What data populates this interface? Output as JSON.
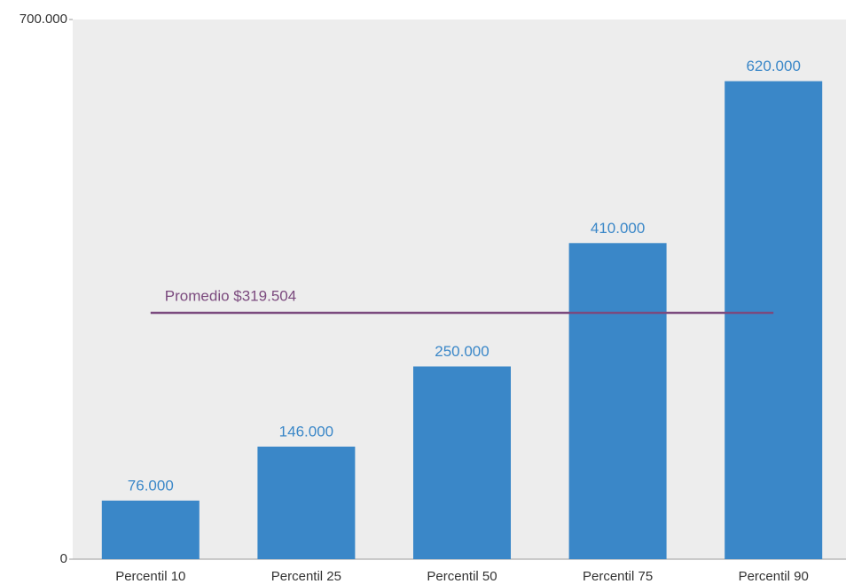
{
  "chart_data": {
    "type": "bar",
    "categories": [
      "Percentil 10",
      "Percentil 25",
      "Percentil 50",
      "Percentil 75",
      "Percentil 90"
    ],
    "values": [
      76000,
      146000,
      250000,
      410000,
      620000
    ],
    "value_labels": [
      "76.000",
      "146.000",
      "250.000",
      "410.000",
      "620.000"
    ],
    "color": "#3a87c8",
    "ylim": [
      0,
      700000
    ],
    "yticks": [
      0,
      {
        "value": 700000,
        "label": "700.000"
      }
    ],
    "grid": false,
    "reference_line": {
      "value": 319504,
      "label": "Promedio $319.504",
      "color": "#7b4a7e"
    }
  }
}
